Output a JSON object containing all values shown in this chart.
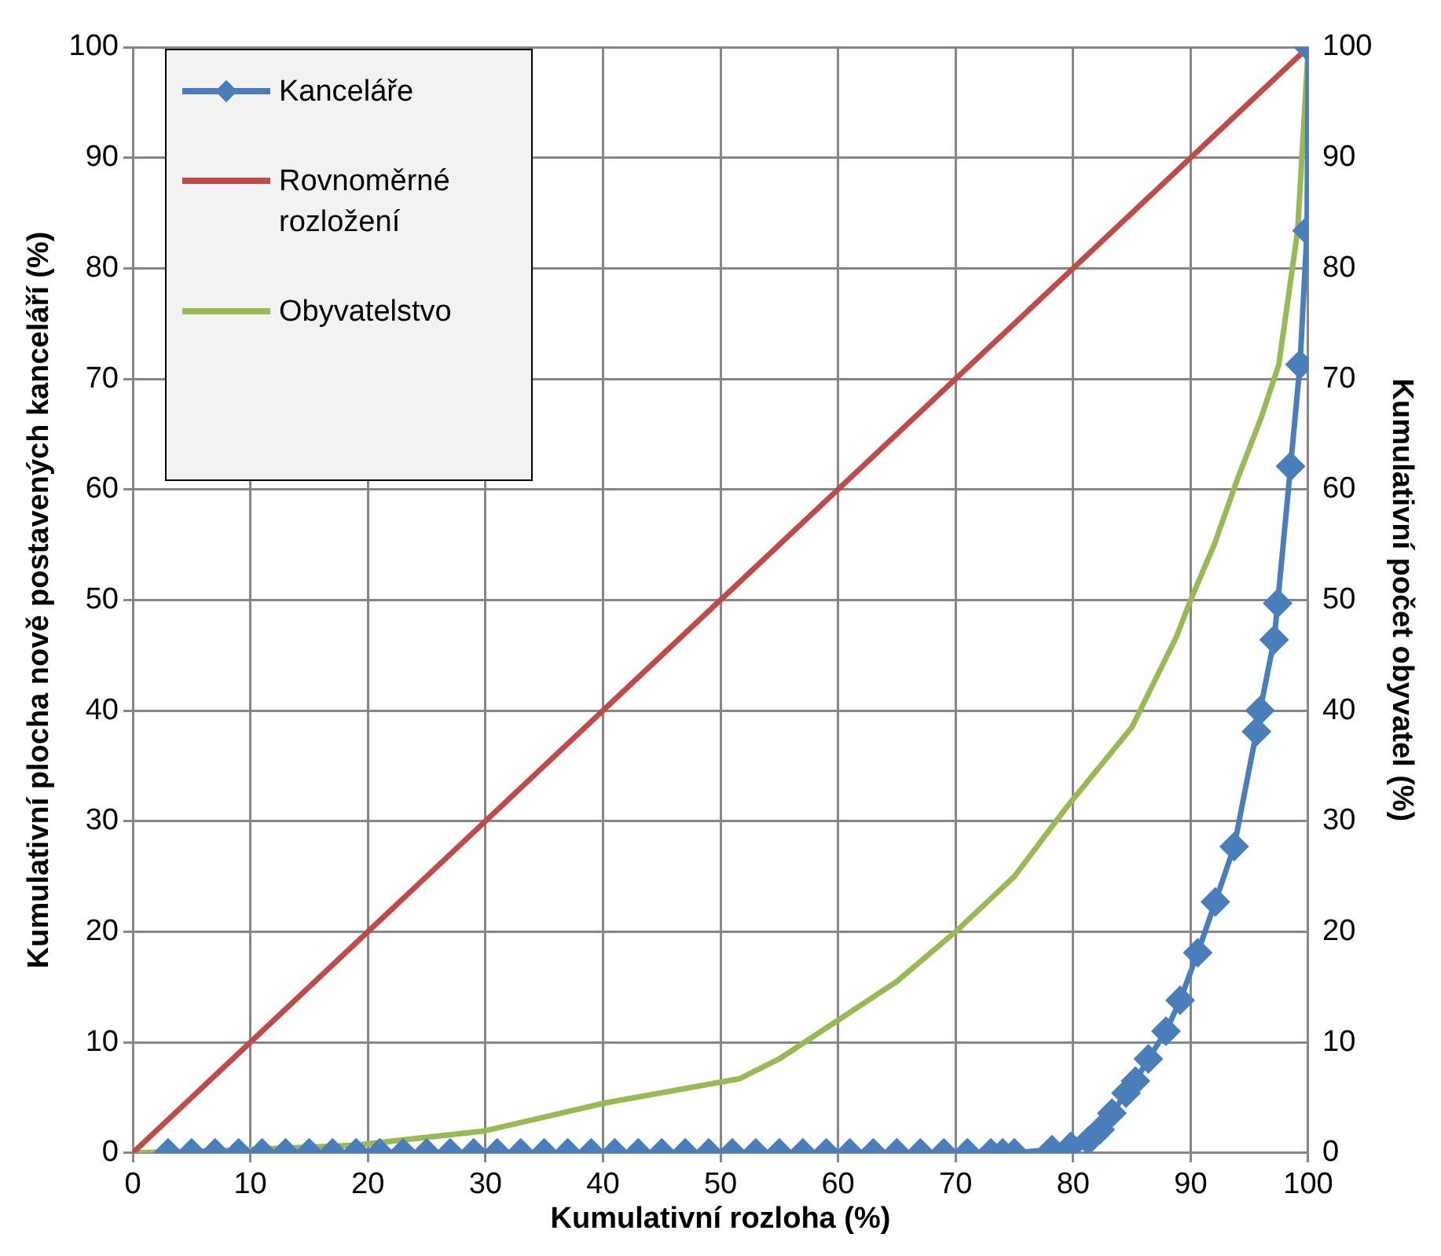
{
  "chart_data": {
    "type": "line",
    "xlabel": "Kumulativní rozloha (%)",
    "ylabel": "Kumulativní plocha nově postavených kanceláří (%)",
    "y2label": "Kumulativní počet obyvatel (%)",
    "xlim": [
      0,
      100
    ],
    "xticks": [
      0,
      10,
      20,
      30,
      40,
      50,
      60,
      70,
      80,
      90,
      100
    ],
    "ylim": [
      0,
      100
    ],
    "yticks": [
      0,
      10,
      20,
      30,
      40,
      50,
      60,
      70,
      80,
      90,
      100
    ],
    "y2lim": [
      0,
      100
    ],
    "y2ticks": [
      0,
      10,
      20,
      30,
      40,
      50,
      60,
      70,
      80,
      90,
      100
    ],
    "grid": true,
    "legend": "top left",
    "series": [
      {
        "name": "Kanceláře",
        "color": "#4a7ebb",
        "marker": "diamond",
        "x": [
          3,
          5,
          7,
          9,
          11,
          13,
          15,
          17,
          19,
          21,
          23,
          25,
          27,
          29,
          31,
          33,
          35,
          37,
          39,
          41,
          43,
          45,
          47,
          49,
          51,
          53,
          55,
          57,
          59,
          61,
          63,
          65,
          67,
          69,
          71,
          73,
          74,
          75,
          78.2,
          79.8,
          81.3,
          82.3,
          83.3,
          84.5,
          85.3,
          86.4,
          87.9,
          89.1,
          90.6,
          92.1,
          93.7,
          95.6,
          95.9,
          97.1,
          97.4,
          98.5,
          99.3,
          99.9,
          100
        ],
        "values": [
          0,
          0,
          0,
          0,
          0,
          0,
          0,
          0,
          0,
          0,
          0,
          0,
          0,
          0,
          0,
          0,
          0,
          0,
          0,
          0,
          0,
          0,
          0,
          0,
          0,
          0,
          0,
          0,
          0,
          0,
          0,
          0,
          0,
          0,
          0,
          0,
          0,
          0,
          0.3,
          0.6,
          1.1,
          2.1,
          3.6,
          5.4,
          6.5,
          8.5,
          11,
          13.8,
          18.1,
          22.7,
          27.7,
          38.1,
          40,
          46.4,
          49.7,
          62.1,
          71.3,
          83.4,
          100
        ]
      },
      {
        "name": "Rovnoměrné rozložení",
        "color": "#be4b48",
        "marker": "none",
        "x": [
          0,
          100
        ],
        "values": [
          0,
          100
        ]
      },
      {
        "name": "Obyvatelstvo",
        "color": "#98b954",
        "marker": "none",
        "x": [
          0,
          10,
          19,
          30,
          40.1,
          51.6,
          55,
          60,
          65,
          70,
          75,
          79.4,
          85,
          88.8,
          90,
          92,
          94,
          96,
          97.5,
          99.1,
          100
        ],
        "values": [
          0,
          0.3,
          0.7,
          2,
          4.5,
          6.7,
          8.5,
          12,
          15.5,
          20,
          25,
          31.2,
          38.5,
          46.7,
          50,
          55,
          61,
          66.5,
          71.3,
          83.4,
          100
        ]
      }
    ]
  }
}
